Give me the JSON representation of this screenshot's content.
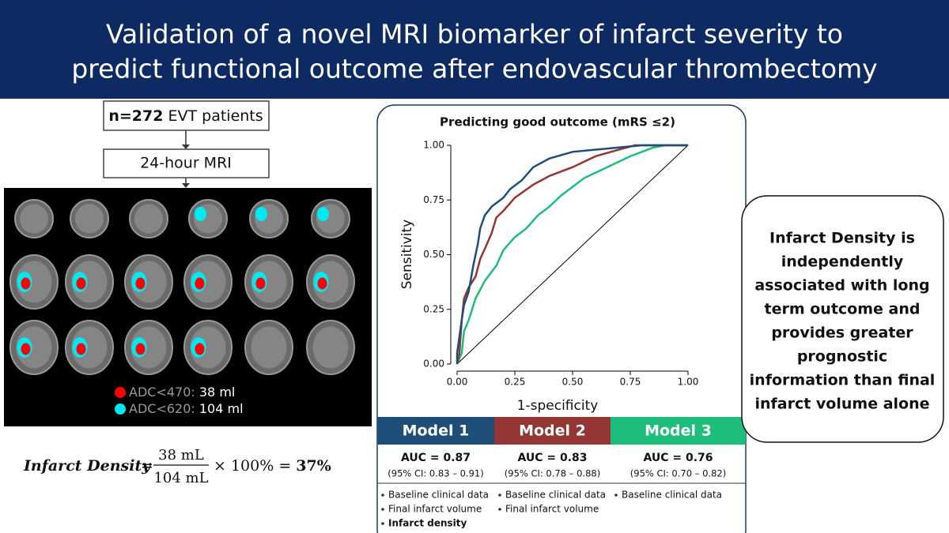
{
  "header": {
    "title_lines": [
      "Validation of a novel MRI biomarker of infarct severity to",
      "predict functional outcome after endovascular thrombectomy"
    ]
  },
  "flow": {
    "patients_bold": "n=272",
    "patients_rest": "EVT patients",
    "mri": "24-hour MRI"
  },
  "mri_legend": [
    {
      "label": "ADC<470:",
      "value": "38 ml",
      "color": "#ff0000"
    },
    {
      "label": "ADC<620:",
      "value": "104 ml",
      "color": "#00e8f0"
    }
  ],
  "formula": {
    "lhs": "Infarct Density",
    "equals": "=",
    "numerator": "38 mL",
    "denominator": "104 mL",
    "times": "× 100% = ",
    "result": "37%"
  },
  "chart_data": {
    "type": "line",
    "title": "Predicting good outcome (mRS ≤2)",
    "xlabel": "1-specificity",
    "ylabel": "Sensitivity",
    "xlim": [
      0,
      1
    ],
    "ylim": [
      0,
      1
    ],
    "xticks": [
      {
        "value": 0,
        "label": "0.00"
      },
      {
        "value": 0.25,
        "label": "0.25"
      },
      {
        "value": 0.5,
        "label": "0.50"
      },
      {
        "value": 0.75,
        "label": "0.75"
      },
      {
        "value": 1,
        "label": "1.00"
      }
    ],
    "yticks": [
      {
        "value": 0,
        "label": "0.00"
      },
      {
        "value": 0.25,
        "label": "0.25"
      },
      {
        "value": 0.5,
        "label": "0.50"
      },
      {
        "value": 0.75,
        "label": "0.75"
      },
      {
        "value": 1,
        "label": "1.00"
      }
    ],
    "series": [
      {
        "name": "Model 1",
        "color": "#1f4e79",
        "auc": "AUC = 0.87",
        "ci": "(95% CI: 0.83 – 0.91)",
        "features": [
          "Baseline clinical data",
          "Final infarct volume",
          "Infarct density"
        ],
        "x": [
          0,
          0,
          0.02,
          0.03,
          0.05,
          0.07,
          0.09,
          0.1,
          0.12,
          0.15,
          0.2,
          0.23,
          0.28,
          0.33,
          0.4,
          0.5,
          0.6,
          0.7,
          0.8,
          1
        ],
        "values": [
          0,
          0.05,
          0.2,
          0.27,
          0.33,
          0.45,
          0.55,
          0.62,
          0.68,
          0.72,
          0.76,
          0.8,
          0.84,
          0.9,
          0.94,
          0.97,
          0.98,
          0.99,
          1,
          1
        ]
      },
      {
        "name": "Model 2",
        "color": "#943634",
        "auc": "AUC = 0.83",
        "ci": "(95% CI: 0.78 – 0.88)",
        "features": [
          "Baseline clinical data",
          "Final infarct volume"
        ],
        "x": [
          0,
          0.01,
          0.02,
          0.03,
          0.05,
          0.08,
          0.1,
          0.13,
          0.15,
          0.17,
          0.2,
          0.25,
          0.33,
          0.4,
          0.5,
          0.6,
          0.7,
          0.77,
          1
        ],
        "values": [
          0,
          0.05,
          0.2,
          0.3,
          0.35,
          0.4,
          0.48,
          0.55,
          0.6,
          0.67,
          0.7,
          0.76,
          0.82,
          0.86,
          0.9,
          0.95,
          0.98,
          1,
          1
        ]
      },
      {
        "name": "Model 3",
        "color": "#1dbd7c",
        "auc": "AUC = 0.76",
        "ci": "(95% CI: 0.70 – 0.82)",
        "features": [
          "Baseline clinical data"
        ],
        "x": [
          0,
          0.02,
          0.03,
          0.05,
          0.08,
          0.12,
          0.17,
          0.2,
          0.25,
          0.3,
          0.35,
          0.4,
          0.45,
          0.55,
          0.65,
          0.75,
          0.85,
          0.9,
          1
        ],
        "values": [
          0,
          0.05,
          0.15,
          0.2,
          0.3,
          0.38,
          0.45,
          0.52,
          0.58,
          0.62,
          0.68,
          0.72,
          0.77,
          0.85,
          0.9,
          0.95,
          0.99,
          1,
          1
        ]
      }
    ]
  },
  "conclusion": {
    "lines": [
      "Infarct Density is",
      "independently",
      "associated with long",
      "term outcome and",
      "provides greater",
      "prognostic",
      "information than final",
      "infarct volume alone"
    ]
  }
}
